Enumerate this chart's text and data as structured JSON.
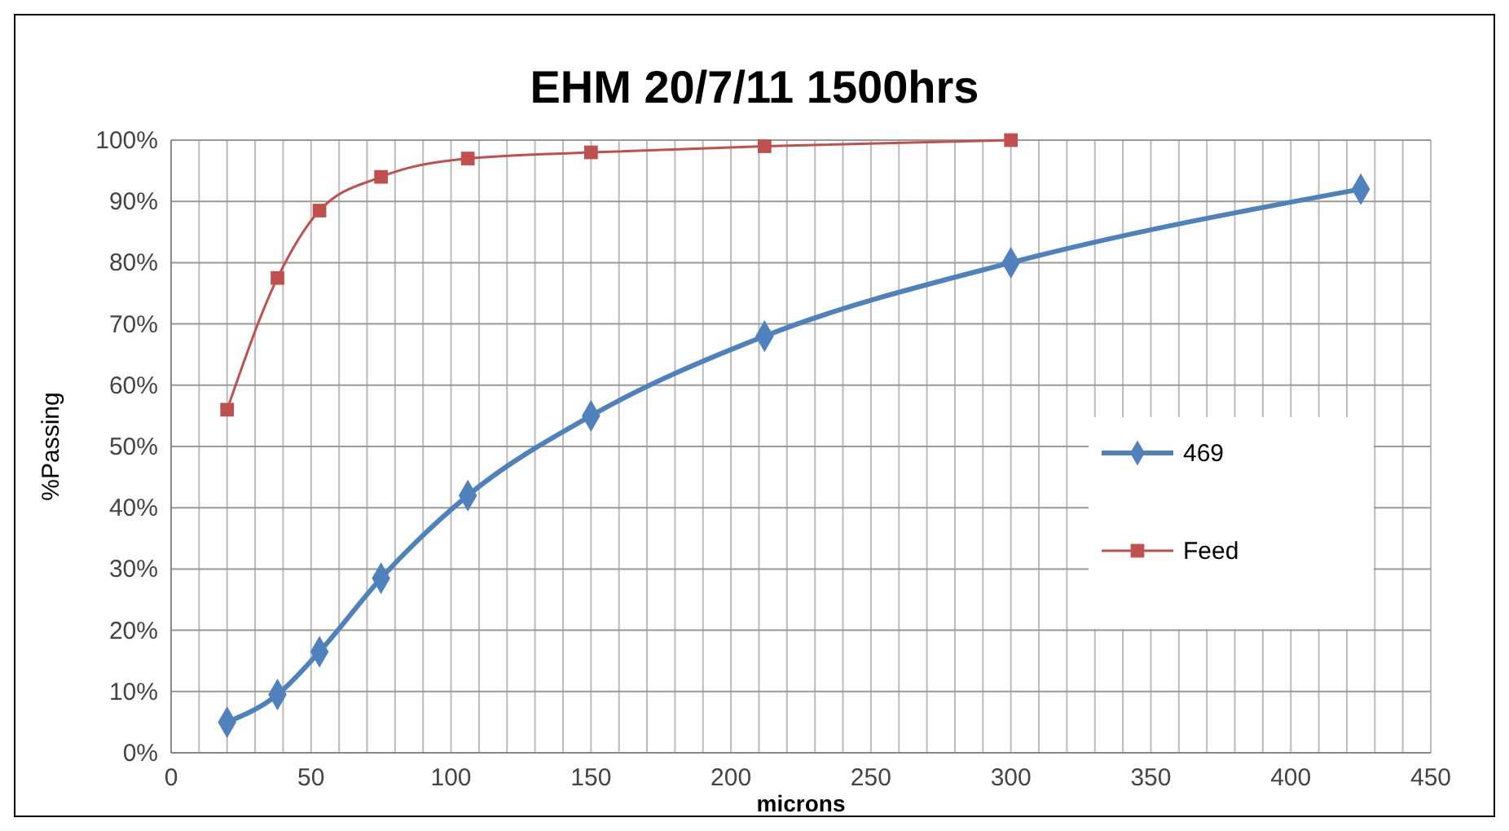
{
  "chart_data": {
    "type": "line",
    "title": "EHM 20/7/11 1500hrs",
    "xlabel": "microns",
    "ylabel": "%Passing",
    "xlim": [
      0,
      450
    ],
    "xticks": [
      0,
      {
        "value": 10,
        "label": null
      },
      {
        "value": 20,
        "label": null
      },
      {
        "value": 30,
        "label": null
      },
      {
        "value": 40,
        "label": null
      },
      50,
      {
        "value": 60,
        "label": null
      },
      {
        "value": 70,
        "label": null
      },
      {
        "value": 80,
        "label": null
      },
      {
        "value": 90,
        "label": null
      },
      100,
      {
        "value": 110,
        "label": null
      },
      {
        "value": 120,
        "label": null
      },
      {
        "value": 130,
        "label": null
      },
      {
        "value": 140,
        "label": null
      },
      150,
      {
        "value": 160,
        "label": null
      },
      {
        "value": 170,
        "label": null
      },
      {
        "value": 180,
        "label": null
      },
      {
        "value": 190,
        "label": null
      },
      200,
      {
        "value": 210,
        "label": null
      },
      {
        "value": 220,
        "label": null
      },
      {
        "value": 230,
        "label": null
      },
      {
        "value": 240,
        "label": null
      },
      250,
      {
        "value": 260,
        "label": null
      },
      {
        "value": 270,
        "label": null
      },
      {
        "value": 280,
        "label": null
      },
      {
        "value": 290,
        "label": null
      },
      300,
      {
        "value": 310,
        "label": null
      },
      {
        "value": 320,
        "label": null
      },
      {
        "value": 330,
        "label": null
      },
      {
        "value": 340,
        "label": null
      },
      350,
      {
        "value": 360,
        "label": null
      },
      {
        "value": 370,
        "label": null
      },
      {
        "value": 380,
        "label": null
      },
      {
        "value": 390,
        "label": null
      },
      400,
      {
        "value": 410,
        "label": null
      },
      {
        "value": 420,
        "label": null
      },
      {
        "value": 430,
        "label": null
      },
      {
        "value": 440,
        "label": null
      },
      450
    ],
    "ylim": [
      0,
      100
    ],
    "yticks": [
      {
        "value": 0,
        "label": "0%"
      },
      {
        "value": 10,
        "label": "10%"
      },
      {
        "value": 20,
        "label": "20%"
      },
      {
        "value": 30,
        "label": "30%"
      },
      {
        "value": 40,
        "label": "40%"
      },
      {
        "value": 50,
        "label": "50%"
      },
      {
        "value": 60,
        "label": "60%"
      },
      {
        "value": 70,
        "label": "70%"
      },
      {
        "value": 80,
        "label": "80%"
      },
      {
        "value": 90,
        "label": "90%"
      },
      {
        "value": 100,
        "label": "100%"
      }
    ],
    "grid": true,
    "legend": "right",
    "series": [
      {
        "name": "469",
        "color": "#4f81bd",
        "marker": "diamond",
        "x": [
          20,
          38,
          53,
          75,
          106,
          150,
          212,
          300,
          425
        ],
        "values": [
          5,
          9.5,
          16.5,
          28.5,
          42,
          55,
          68,
          80,
          92
        ]
      },
      {
        "name": "Feed",
        "color": "#c0504d",
        "marker": "square",
        "x": [
          20,
          38,
          53,
          75,
          106,
          150,
          212,
          300
        ],
        "values": [
          56,
          77.5,
          88.5,
          94,
          97,
          98,
          99,
          100
        ]
      }
    ]
  }
}
